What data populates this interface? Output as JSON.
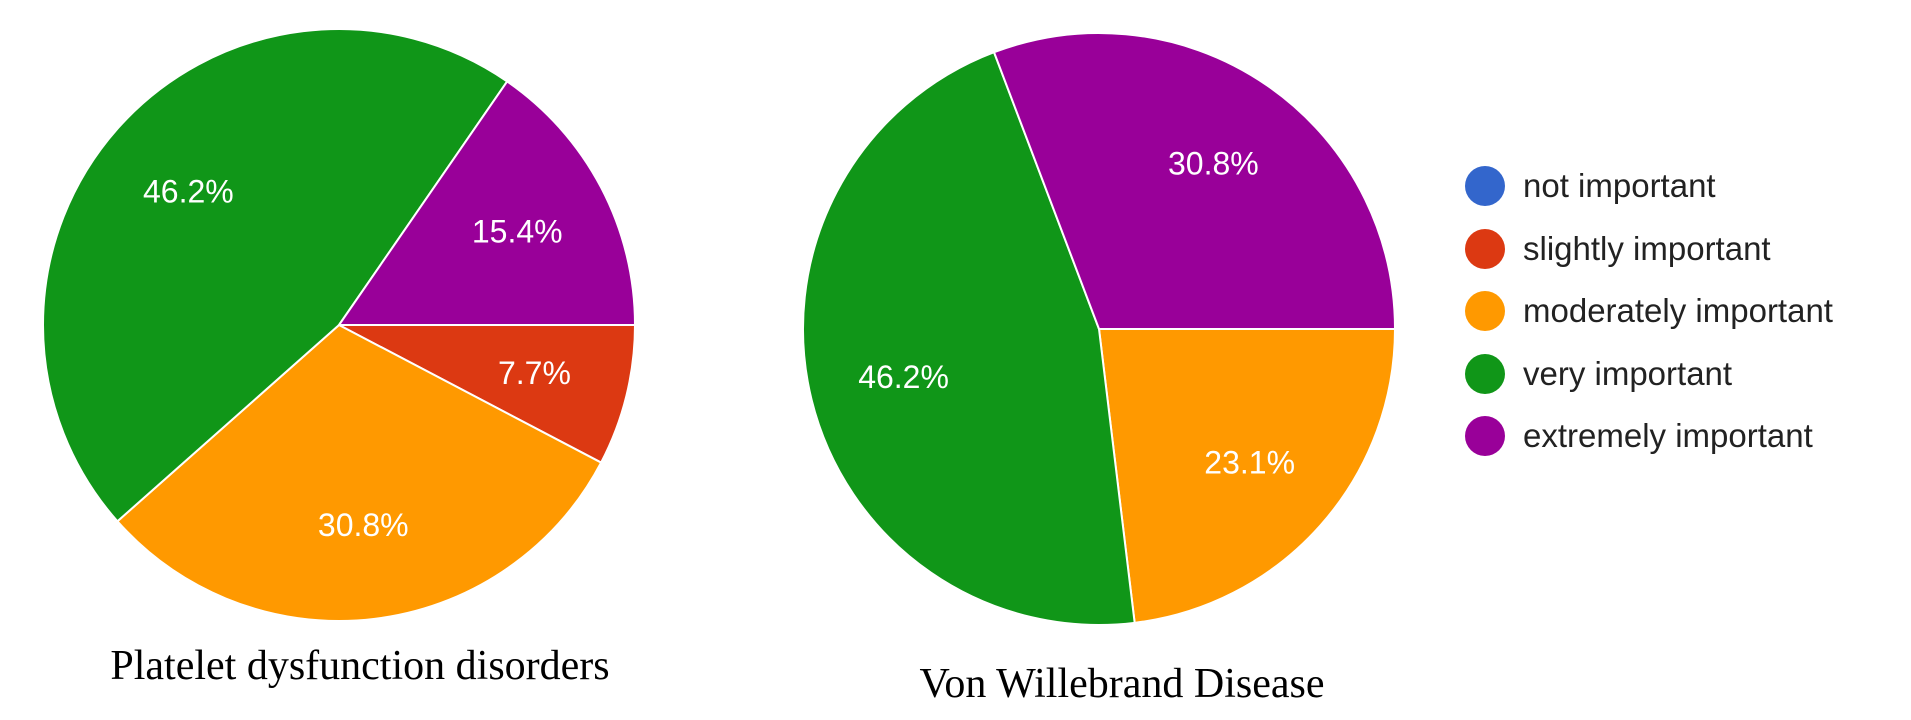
{
  "chart_data": [
    {
      "type": "pie",
      "title": "Platelet dysfunction disorders",
      "slices": [
        {
          "label": "not important",
          "value": 0,
          "display": ""
        },
        {
          "label": "slightly important",
          "value": 7.7,
          "display": "7.7%"
        },
        {
          "label": "moderately important",
          "value": 30.8,
          "display": "30.8%"
        },
        {
          "label": "very important",
          "value": 46.2,
          "display": "46.2%"
        },
        {
          "label": "extremely important",
          "value": 15.4,
          "display": "15.4%"
        }
      ]
    },
    {
      "type": "pie",
      "title": "Von Willebrand Disease",
      "slices": [
        {
          "label": "not important",
          "value": 0,
          "display": ""
        },
        {
          "label": "slightly important",
          "value": 0,
          "display": ""
        },
        {
          "label": "moderately important",
          "value": 23.1,
          "display": "23.1%"
        },
        {
          "label": "very important",
          "value": 46.2,
          "display": "46.2%"
        },
        {
          "label": "extremely important",
          "value": 30.8,
          "display": "30.8%"
        }
      ]
    }
  ],
  "legend": {
    "placement": "right",
    "items": [
      {
        "label": "not important",
        "color": "#3366cc"
      },
      {
        "label": "slightly important",
        "color": "#dc3912"
      },
      {
        "label": "moderately important",
        "color": "#ff9900"
      },
      {
        "label": "very important",
        "color": "#109618"
      },
      {
        "label": "extremely important",
        "color": "#990099"
      }
    ]
  }
}
